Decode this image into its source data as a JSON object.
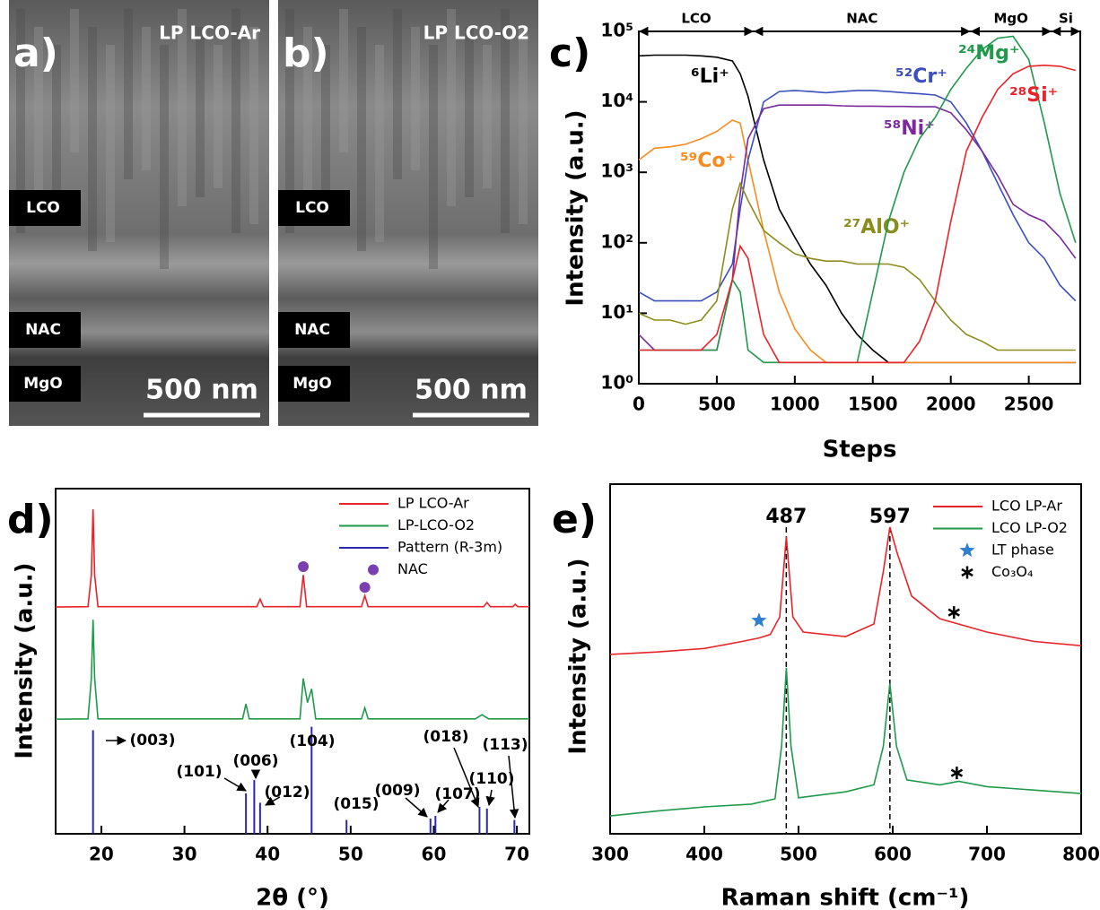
{
  "images": [
    {
      "panel": "a)",
      "title": "LP LCO-Ar",
      "layers": [
        "LCO",
        "NAC",
        "MgO"
      ],
      "scale_bar": "500 nm"
    },
    {
      "panel": "b)",
      "title": "LP LCO-O2",
      "layers": [
        "LCO",
        "NAC",
        "MgO"
      ],
      "scale_bar": "500 nm"
    }
  ],
  "chart_data": [
    {
      "type": "line",
      "panel": "c)",
      "y_scale": "log",
      "xlabel": "Steps",
      "ylabel": "Intensity (a.u.)",
      "xlim": [
        0,
        2830
      ],
      "ylim": [
        1,
        100000
      ],
      "xticks": [
        0,
        500,
        1000,
        1500,
        2000,
        2500
      ],
      "yticks": [
        {
          "value": 1,
          "label": "10⁰"
        },
        {
          "value": 10,
          "label": "10¹"
        },
        {
          "value": 100,
          "label": "10²"
        },
        {
          "value": 1000,
          "label": "10³"
        },
        {
          "value": 10000,
          "label": "10⁴"
        },
        {
          "value": 100000,
          "label": "10⁵"
        }
      ],
      "regions": [
        {
          "label": "LCO",
          "range": [
            0,
            736
          ]
        },
        {
          "label": "NAC",
          "range": [
            736,
            2126
          ]
        },
        {
          "label": "MgO",
          "range": [
            2126,
            2645
          ]
        },
        {
          "label": "Si",
          "range": [
            2645,
            2830
          ]
        }
      ],
      "x": [
        0,
        100,
        200,
        300,
        400,
        500,
        600,
        650,
        700,
        800,
        900,
        1000,
        1100,
        1200,
        1300,
        1400,
        1500,
        1600,
        1700,
        1800,
        1900,
        2000,
        2100,
        2200,
        2300,
        2400,
        2500,
        2600,
        2700,
        2800
      ],
      "series": [
        {
          "name": "⁶Li⁺",
          "color": "#000000",
          "values": [
            45000,
            46000,
            46000,
            46000,
            45000,
            43000,
            38000,
            25000,
            12000,
            1500,
            300,
            120,
            50,
            25,
            10,
            5,
            3,
            2,
            2,
            2,
            2,
            2,
            2,
            2,
            2,
            2,
            2,
            2,
            2,
            2
          ]
        },
        {
          "name": "⁵⁹Co⁺",
          "color": "#f68b1f",
          "values": [
            1500,
            2200,
            2300,
            2500,
            3000,
            3800,
            5500,
            5000,
            1500,
            150,
            20,
            6,
            3,
            2,
            2,
            2,
            2,
            2,
            2,
            2,
            2,
            2,
            2,
            2,
            2,
            2,
            2,
            2,
            2,
            2
          ]
        },
        {
          "name": "⁵²Cr⁺",
          "color": "#3a4fc0",
          "values": [
            20,
            15,
            15,
            15,
            15,
            20,
            50,
            300,
            1500,
            10000,
            14000,
            14500,
            14000,
            13500,
            14000,
            14500,
            14500,
            14000,
            13500,
            13000,
            12500,
            10000,
            5000,
            2000,
            700,
            250,
            100,
            60,
            25,
            15
          ]
        },
        {
          "name": "⁵⁸Ni⁺",
          "color": "#7a2a9a",
          "values": [
            5,
            3,
            3,
            3,
            3,
            3,
            30,
            500,
            3000,
            8000,
            9000,
            9000,
            9000,
            9000,
            8800,
            8700,
            8700,
            8600,
            8600,
            8500,
            8500,
            7000,
            4000,
            2000,
            900,
            350,
            250,
            200,
            120,
            60
          ]
        },
        {
          "name": "²⁷AlO⁺",
          "color": "#8c8c1e",
          "values": [
            10,
            8,
            8,
            7,
            8,
            15,
            300,
            700,
            400,
            150,
            100,
            70,
            60,
            55,
            55,
            50,
            50,
            50,
            45,
            30,
            15,
            8,
            5,
            4,
            3,
            3,
            3,
            3,
            3,
            3
          ]
        },
        {
          "name": "²⁴Mg⁺",
          "color": "#1f9a4a",
          "values": [
            3,
            3,
            3,
            3,
            3,
            3,
            30,
            20,
            3,
            2,
            2,
            2,
            2,
            2,
            2,
            2,
            20,
            200,
            1000,
            3000,
            6000,
            15000,
            30000,
            55000,
            80000,
            85000,
            40000,
            5000,
            500,
            100
          ]
        },
        {
          "name": "²⁸Si⁺",
          "color": "#e8242a",
          "values": [
            3,
            3,
            3,
            3,
            3,
            5,
            30,
            90,
            60,
            5,
            2,
            2,
            2,
            2,
            2,
            2,
            2,
            2,
            2,
            4,
            15,
            200,
            2000,
            6000,
            15000,
            25000,
            32000,
            33000,
            32000,
            28000
          ]
        }
      ]
    },
    {
      "type": "line",
      "panel": "d)",
      "xlabel": "2θ (°)",
      "ylabel": "Intensity (a.u.)",
      "xlim": [
        14.5,
        71.5
      ],
      "ylim": [
        0,
        100
      ],
      "xticks": [
        20,
        30,
        40,
        50,
        60,
        70
      ],
      "series": [
        {
          "name": "LP LCO-Ar",
          "color": "#e8242a",
          "mark": "line",
          "x": [
            14.5,
            18.4,
            18.8,
            19,
            19.2,
            19.6,
            38.7,
            39.1,
            39.5,
            43.9,
            44.3,
            44.7,
            51.3,
            51.7,
            52.1,
            66,
            66.4,
            66.8,
            69.5,
            69.8,
            70.1,
            71.5
          ],
          "values": [
            65.7,
            65.8,
            75,
            94,
            75,
            65.8,
            65.8,
            68,
            65.8,
            65.8,
            75,
            65.8,
            65.8,
            69,
            65.8,
            65.8,
            67,
            65.8,
            65.8,
            66.5,
            65.8,
            65.8
          ]
        },
        {
          "name": "LP-LCO-O2",
          "color": "#1f9a4a",
          "mark": "line",
          "x": [
            14.5,
            18.4,
            18.8,
            19,
            19.2,
            19.6,
            37,
            37.4,
            37.8,
            43.9,
            44.3,
            44.8,
            45.3,
            45.8,
            51.3,
            51.7,
            52.1,
            65,
            65.8,
            66.6,
            71.5
          ],
          "values": [
            33.2,
            33.3,
            45,
            62,
            45,
            33.3,
            33.3,
            37.6,
            33.3,
            33.3,
            45,
            38,
            42,
            33.3,
            33.3,
            36.5,
            33.3,
            33.3,
            34.5,
            33.3,
            33.3
          ]
        },
        {
          "name": "Pattern (R-3m)",
          "color": "#2a2aa8",
          "mark": "stick",
          "x": [
            19,
            37.4,
            38.4,
            39.1,
            45.3,
            49.5,
            59.6,
            60.2,
            65.5,
            66.4,
            69.7
          ],
          "values": [
            30,
            11.7,
            15.6,
            9,
            31,
            4,
            4.4,
            5.2,
            7.8,
            7.3,
            4
          ],
          "labels": [
            "(003)",
            "(101)",
            "(006)",
            "(012)",
            "(104)",
            "(015)",
            "(009)",
            "(107)",
            "(018)",
            "(110)",
            "(113)"
          ]
        },
        {
          "name": "NAC",
          "color": "#7a3fb0",
          "mark": "dot",
          "x": [
            44.3,
            51.7
          ],
          "values": [
            77.4,
            71.4
          ]
        }
      ]
    },
    {
      "type": "line",
      "panel": "e)",
      "xlabel": "Raman shift (cm⁻¹)",
      "ylabel": "Intensity (a.u.)",
      "xlim": [
        300,
        800
      ],
      "ylim": [
        0,
        100
      ],
      "xticks": [
        300,
        400,
        500,
        600,
        700,
        800
      ],
      "annotations": [
        {
          "text": "487",
          "x": 487
        },
        {
          "text": "597",
          "x": 597
        }
      ],
      "series": [
        {
          "name": "LCO LP-Ar",
          "color": "#e8242a",
          "mark": "line",
          "x": [
            300,
            350,
            400,
            440,
            458,
            470,
            480,
            487,
            494,
            505,
            550,
            580,
            590,
            597,
            605,
            620,
            650,
            700,
            750,
            800
          ],
          "values": [
            51.3,
            52,
            53,
            55,
            56,
            57,
            62,
            85,
            62,
            57.7,
            56.4,
            60,
            75,
            87.7,
            80,
            68,
            61.5,
            57.7,
            55,
            53.8
          ]
        },
        {
          "name": "LCO LP-O2",
          "color": "#1f9a4a",
          "mark": "line",
          "x": [
            300,
            350,
            400,
            450,
            475,
            482,
            487,
            492,
            500,
            550,
            580,
            590,
            597,
            604,
            615,
            650,
            670,
            700,
            800
          ],
          "values": [
            5.1,
            6.5,
            7.7,
            8.5,
            10,
            25,
            47.4,
            25,
            10.3,
            12,
            14,
            25,
            43,
            25,
            15.4,
            14,
            15,
            13.5,
            11.5
          ]
        },
        {
          "name": "LT phase",
          "color": "#2f7fd0",
          "mark": "star",
          "x": [
            458
          ],
          "values": [
            61
          ]
        },
        {
          "name": "Co₃O₄",
          "color": "#000000",
          "mark": "asterisk",
          "x": [
            665,
            668
          ],
          "values": [
            63.3,
            17.4
          ]
        }
      ]
    }
  ]
}
